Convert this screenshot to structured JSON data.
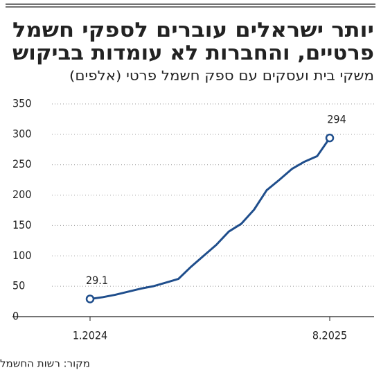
{
  "chart_data": {
    "type": "line",
    "title": [
      "יותר ישראלים עוברים לספקי חשמל",
      "פרטיים, והחברות לא עומדות בביקוש"
    ],
    "subtitle": "משקי בית ועסקים עם ספק חשמל פרטי (אלפים)",
    "source": "מקור: רשות החשמל",
    "categories": [
      "1.2024",
      null,
      null,
      null,
      null,
      null,
      null,
      null,
      null,
      null,
      null,
      null,
      null,
      null,
      null,
      null,
      null,
      null,
      null,
      "8.2025"
    ],
    "series": [
      {
        "color": "#1f4e8c",
        "values": [
          29.1,
          32,
          36,
          41,
          46,
          50,
          56,
          62,
          82,
          100,
          118,
          140,
          153,
          176,
          208,
          225,
          243,
          255,
          264,
          294
        ]
      }
    ],
    "labeled_points": [
      0,
      19
    ],
    "ylim": [
      0,
      350
    ],
    "yticks": [
      0,
      50,
      100,
      150,
      200,
      250,
      300,
      350
    ],
    "grid": true
  }
}
